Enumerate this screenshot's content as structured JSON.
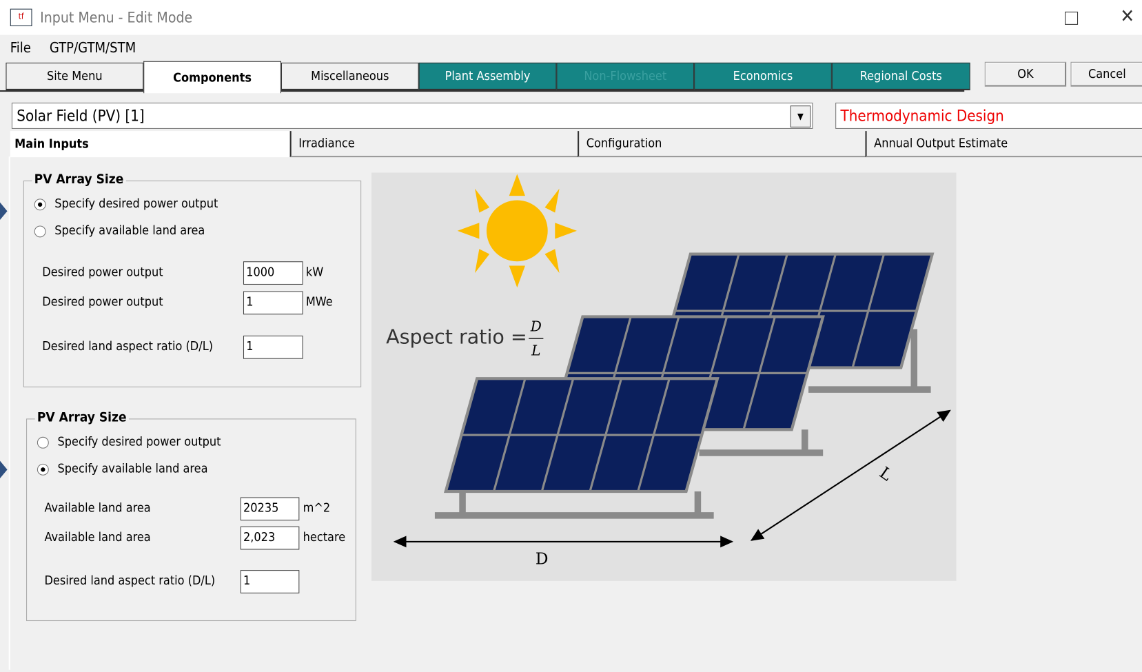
{
  "window": {
    "title": "Input Menu - Edit Mode"
  },
  "menu": [
    "File",
    "GTP/GTM/STM"
  ],
  "tabs": [
    "Site Menu",
    "Components",
    "Miscellaneous",
    "Plant Assembly",
    "Non-Flowsheet",
    "Economics",
    "Regional Costs"
  ],
  "buttons": [
    "OK",
    "Cancel"
  ],
  "component_select": "Solar Field (PV) [1]",
  "mode_select": "Thermodynamic Design",
  "subtabs": [
    "Main Inputs",
    "Irradiance",
    "Configuration",
    "Annual Output Estimate"
  ],
  "groups": [
    {
      "title": "PV Array Size",
      "options": [
        "Specify desired power output",
        "Specify available land area"
      ],
      "fields": [
        {
          "label": "Desired power output",
          "value": "1000",
          "unit": "kW"
        },
        {
          "label": "Desired power output",
          "value": "1",
          "unit": "MWe"
        },
        {
          "label": "Desired land aspect ratio (D/L)",
          "value": "1"
        }
      ]
    },
    {
      "title": "PV Array Size",
      "options": [
        "Specify desired power output",
        "Specify available land area"
      ],
      "fields": [
        {
          "label": "Available land area",
          "value": "20235",
          "unit": "m^2"
        },
        {
          "label": "Available land area",
          "value": "2,023",
          "unit": "hectare"
        },
        {
          "label": "Desired land aspect ratio (D/L)",
          "value": "1"
        }
      ]
    }
  ],
  "diagram": {
    "aspect_label": "Aspect ratio =",
    "numerator": "D",
    "denominator": "L",
    "d_label": "D",
    "l_label": "L"
  }
}
